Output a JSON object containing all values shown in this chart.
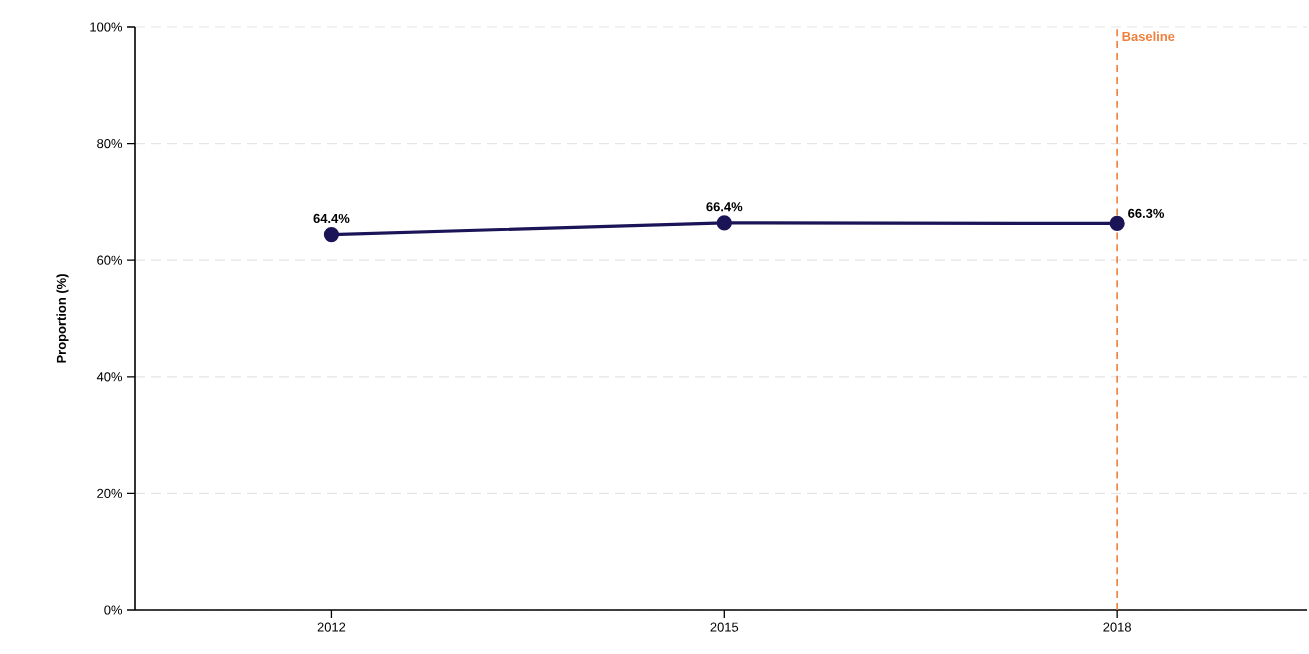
{
  "chart_data": {
    "type": "line",
    "ylabel": "Proportion (%)",
    "x": [
      2012,
      2015,
      2018
    ],
    "series": [
      {
        "color": "#1b1456",
        "values": [
          64.4,
          66.4,
          66.3
        ],
        "value_labels": [
          "64.4%",
          "66.4%",
          "66.3%"
        ]
      }
    ],
    "xlim": [
      2010.5,
      2019.45
    ],
    "xticks": [
      2012,
      2015,
      2018
    ],
    "ylim": [
      0,
      100
    ],
    "yticks": [
      {
        "value": 0,
        "label": "0%"
      },
      {
        "value": 20,
        "label": "20%"
      },
      {
        "value": 40,
        "label": "40%"
      },
      {
        "value": 60,
        "label": "60%"
      },
      {
        "value": 80,
        "label": "80%"
      },
      {
        "value": 100,
        "label": "100%"
      }
    ],
    "grid": "y",
    "marker": "circle",
    "line_style": "solid",
    "ref_lines": [
      {
        "axis": "x",
        "value": 2018,
        "label": "Baseline",
        "color": "#f07f3c",
        "line_style": "dashed"
      }
    ]
  }
}
